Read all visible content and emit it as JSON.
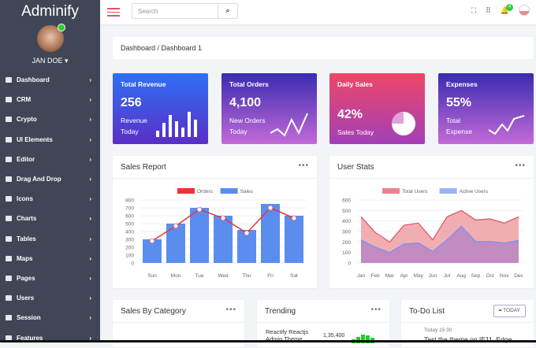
{
  "app": {
    "title": "Adminify",
    "user": "JAN DOE"
  },
  "sidebar": {
    "items": [
      {
        "label": "Dashboard"
      },
      {
        "label": "CRM"
      },
      {
        "label": "Crypto"
      },
      {
        "label": "UI Elements"
      },
      {
        "label": "Editor"
      },
      {
        "label": "Drag And Drop"
      },
      {
        "label": "Icons"
      },
      {
        "label": "Charts"
      },
      {
        "label": "Tables"
      },
      {
        "label": "Maps"
      },
      {
        "label": "Pages"
      },
      {
        "label": "Users"
      },
      {
        "label": "Session"
      },
      {
        "label": "Features"
      }
    ]
  },
  "header": {
    "search_placeholder": "Search",
    "notifications": "4"
  },
  "breadcrumb": "Dashboard / Dashboard 1",
  "cards": [
    {
      "title": "Total Revenue",
      "value": "256",
      "sub1": "Revenue",
      "sub2": "Today",
      "color1": "#2f6ff5",
      "color2": "#5a2fc6"
    },
    {
      "title": "Total Orders",
      "value": "4,100",
      "sub1": "New Orders",
      "sub2": "Today",
      "color1": "#3a2bb0",
      "color2": "#c36ad8"
    },
    {
      "title": "Daily Sales",
      "value": "42%",
      "sub1": "Sales Today",
      "sub2": "",
      "color1": "#ef4766",
      "color2": "#a23fb8"
    },
    {
      "title": "Expenses",
      "value": "55%",
      "sub1": "Total",
      "sub2": "Expense",
      "color1": "#3a2bb0",
      "color2": "#c36ad8"
    }
  ],
  "panels": {
    "sales_report": "Sales Report",
    "user_stats": "User Stats",
    "sales_by_category": "Sales By Category",
    "trending": "Trending",
    "todo": "To-Do List",
    "today_btn": "TODAY"
  },
  "trending": {
    "item": "Reactify Reactjs Admin Theme",
    "value": "1,35,400"
  },
  "todo": {
    "time": "Today 15:30",
    "text": "Test the theme on IE11, Edge"
  },
  "chart_data": [
    {
      "type": "bar",
      "title": "Sales Report",
      "categories": [
        "Sun",
        "Mon",
        "Tue",
        "Wed",
        "Thu",
        "Fri",
        "Sat"
      ],
      "series": [
        {
          "name": "Orders",
          "type": "line",
          "color": "#e8343b",
          "values": [
            280,
            470,
            680,
            570,
            380,
            700,
            570
          ]
        },
        {
          "name": "Sales",
          "type": "bar",
          "color": "#5b8def",
          "values": [
            300,
            500,
            700,
            600,
            420,
            750,
            600
          ]
        }
      ],
      "yticks": [
        0,
        100,
        200,
        300,
        400,
        500,
        600,
        700,
        800
      ],
      "ylim": [
        0,
        800
      ],
      "legend": "top"
    },
    {
      "type": "area",
      "title": "User Stats",
      "categories": [
        "Jan",
        "Feb",
        "Mar",
        "Apr",
        "May",
        "Jun",
        "Jul",
        "Aug",
        "Sep",
        "Oct",
        "Nov",
        "Dec"
      ],
      "series": [
        {
          "name": "Total Users",
          "color": "#e05060",
          "values": [
            440,
            290,
            200,
            360,
            380,
            220,
            440,
            500,
            410,
            420,
            380,
            440
          ]
        },
        {
          "name": "Active Users",
          "color": "#6d94f0",
          "values": [
            220,
            150,
            100,
            180,
            190,
            110,
            220,
            350,
            205,
            205,
            190,
            215
          ]
        }
      ],
      "yticks": [
        0,
        100,
        200,
        300,
        400,
        500,
        600
      ],
      "ylim": [
        0,
        600
      ],
      "legend": "top"
    }
  ]
}
